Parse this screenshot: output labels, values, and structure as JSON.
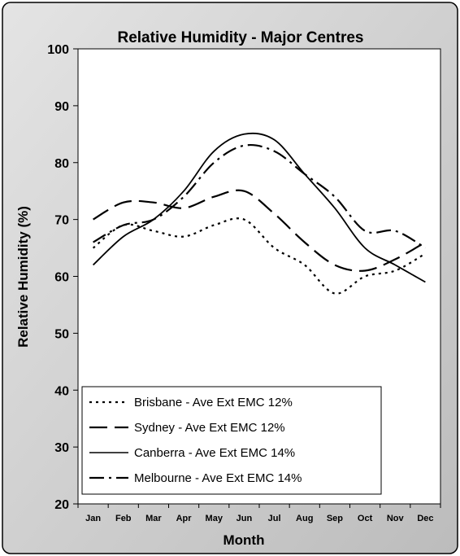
{
  "chart_data": {
    "type": "line",
    "title": "Relative Humidity - Major Centres",
    "xlabel": "Month",
    "ylabel": "Relative Humidity (%)",
    "ylim": [
      20,
      100
    ],
    "yticks": [
      "20",
      "30",
      "40",
      "50",
      "60",
      "70",
      "80",
      "90",
      "100"
    ],
    "categories": [
      "Jan",
      "Feb",
      "Mar",
      "Apr",
      "May",
      "Jun",
      "Jul",
      "Aug",
      "Sep",
      "Oct",
      "Nov",
      "Dec"
    ],
    "grid": false,
    "legend_position": "bottom-left",
    "series": [
      {
        "name": "Brisbane - Ave Ext EMC 12%",
        "style": "dotted",
        "values": [
          65,
          69,
          68,
          67,
          69,
          70,
          65,
          62,
          57,
          60,
          61,
          64
        ]
      },
      {
        "name": "Sydney - Ave Ext EMC 12%",
        "style": "dashed",
        "values": [
          70,
          73,
          73,
          72,
          74,
          75,
          71,
          66,
          62,
          61,
          63,
          66
        ]
      },
      {
        "name": "Canberra - Ave Ext EMC 14%",
        "style": "solid",
        "values": [
          62,
          67,
          70,
          75,
          82,
          85,
          84,
          78,
          72,
          65,
          62,
          59
        ]
      },
      {
        "name": "Melbourne - Ave Ext EMC 14%",
        "style": "dashdot",
        "values": [
          66,
          69,
          70,
          74,
          80,
          83,
          82,
          78,
          74,
          68,
          68,
          65
        ]
      }
    ]
  }
}
